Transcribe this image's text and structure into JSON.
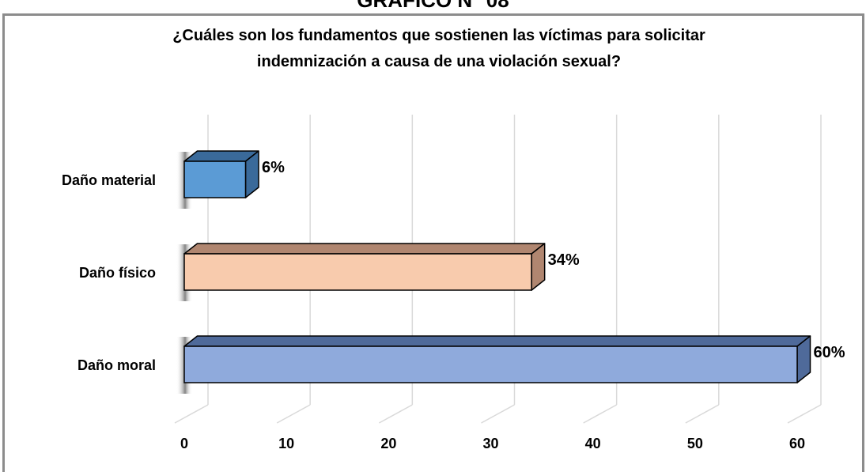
{
  "header": {
    "title": "GRAFICO N° 08"
  },
  "chart_data": {
    "type": "bar",
    "orientation": "horizontal",
    "style": "3d",
    "title_lines": [
      "¿Cuáles son los fundamentos que sostienen las víctimas para solicitar",
      "indemnización a causa de una violación sexual?"
    ],
    "categories": [
      "Daño material",
      "Daño físico",
      "Daño moral"
    ],
    "values": [
      6,
      34,
      60
    ],
    "data_labels": [
      "6%",
      "34%",
      "60%"
    ],
    "bar_colors": [
      "#5b9bd5",
      "#f8cbad",
      "#8faadc"
    ],
    "bar_side_colors": [
      "#3a6a9a",
      "#b08670",
      "#4f6a9a"
    ],
    "xlim": [
      0,
      60
    ],
    "x_ticks": [
      "0",
      "10",
      "20",
      "30",
      "40",
      "50",
      "60"
    ],
    "grid": true,
    "legend": "none"
  }
}
